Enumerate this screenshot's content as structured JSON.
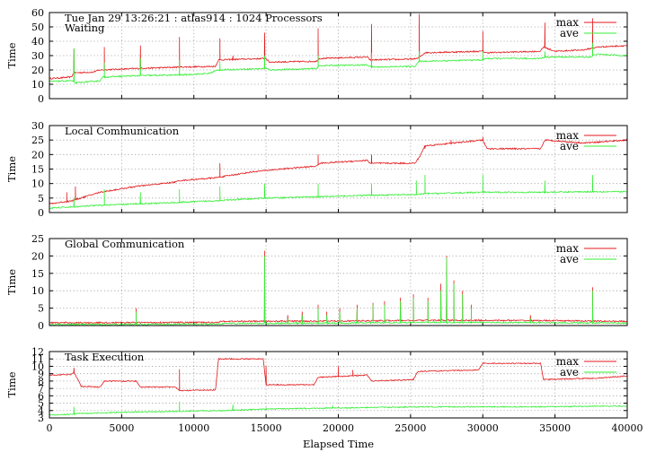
{
  "chart_data": [
    {
      "type": "line",
      "title": "Tue Jan 29 13:26:21 : atlas914 : 1024 Processors",
      "subtitle": "Waiting",
      "xlabel": "",
      "ylabel": "Time",
      "xlim": [
        0,
        40000
      ],
      "ylim": [
        0,
        60
      ],
      "yticks": [
        0,
        10,
        20,
        30,
        40,
        50,
        60
      ],
      "xticks": [],
      "grid": true,
      "legend": "top-right",
      "series": [
        {
          "name": "max",
          "color": "#e31a1c",
          "values": [
            [
              0,
              14
            ],
            [
              1500,
              15
            ],
            [
              1700,
              18
            ],
            [
              3000,
              18.5
            ],
            [
              3500,
              20
            ],
            [
              6000,
              21
            ],
            [
              9000,
              22
            ],
            [
              11500,
              22.5
            ],
            [
              11700,
              27
            ],
            [
              15000,
              28
            ],
            [
              15200,
              25.5
            ],
            [
              18500,
              26
            ],
            [
              18700,
              28
            ],
            [
              22000,
              29
            ],
            [
              22200,
              27
            ],
            [
              25000,
              27.5
            ],
            [
              25500,
              28
            ],
            [
              26000,
              32
            ],
            [
              30000,
              33
            ],
            [
              30200,
              32
            ],
            [
              34000,
              33
            ],
            [
              34200,
              36
            ],
            [
              35000,
              33
            ],
            [
              37000,
              34
            ],
            [
              38000,
              36
            ],
            [
              40000,
              37
            ]
          ],
          "spikes": [
            [
              1700,
              35
            ],
            [
              3800,
              36
            ],
            [
              6300,
              37
            ],
            [
              9000,
              43
            ],
            [
              11800,
              42
            ],
            [
              12700,
              30
            ],
            [
              14900,
              46
            ],
            [
              18600,
              49
            ],
            [
              22300,
              52
            ],
            [
              25600,
              59
            ],
            [
              30000,
              47
            ],
            [
              34300,
              53
            ],
            [
              37600,
              56
            ]
          ]
        },
        {
          "name": "ave",
          "color": "#33ee33",
          "values": [
            [
              0,
              12
            ],
            [
              1500,
              12.5
            ],
            [
              1800,
              11
            ],
            [
              3500,
              12.5
            ],
            [
              3700,
              15
            ],
            [
              6000,
              16
            ],
            [
              9000,
              16.5
            ],
            [
              11000,
              17.5
            ],
            [
              11700,
              20
            ],
            [
              15000,
              21
            ],
            [
              15300,
              20
            ],
            [
              18500,
              21
            ],
            [
              18700,
              23
            ],
            [
              22000,
              23.5
            ],
            [
              22300,
              22
            ],
            [
              25300,
              22.5
            ],
            [
              25600,
              26
            ],
            [
              30000,
              27
            ],
            [
              30200,
              28
            ],
            [
              34000,
              28
            ],
            [
              34300,
              29
            ],
            [
              37500,
              29
            ],
            [
              37800,
              31
            ],
            [
              40000,
              30
            ]
          ],
          "spikes": [
            [
              1700,
              35
            ],
            [
              3800,
              25
            ],
            [
              6300,
              28
            ],
            [
              9000,
              27
            ],
            [
              11800,
              26
            ],
            [
              14900,
              30
            ],
            [
              18600,
              30
            ],
            [
              22300,
              32
            ],
            [
              25600,
              33
            ],
            [
              30000,
              33
            ],
            [
              34300,
              33
            ],
            [
              37600,
              39
            ]
          ]
        }
      ]
    },
    {
      "type": "line",
      "title": "Local Communication",
      "xlabel": "",
      "ylabel": "Time",
      "xlim": [
        0,
        40000
      ],
      "ylim": [
        0,
        30
      ],
      "yticks": [
        0,
        5,
        10,
        15,
        20,
        25,
        30
      ],
      "xticks": [],
      "grid": true,
      "legend": "top-right",
      "series": [
        {
          "name": "max",
          "color": "#e31a1c",
          "values": [
            [
              0,
              3
            ],
            [
              1500,
              4
            ],
            [
              3500,
              7
            ],
            [
              6000,
              9
            ],
            [
              8700,
              10.5
            ],
            [
              9000,
              11
            ],
            [
              11500,
              12
            ],
            [
              14000,
              14
            ],
            [
              16000,
              15
            ],
            [
              18500,
              16
            ],
            [
              18700,
              17
            ],
            [
              22000,
              18
            ],
            [
              22200,
              17
            ],
            [
              25300,
              17
            ],
            [
              25600,
              19
            ],
            [
              26000,
              23
            ],
            [
              28000,
              24
            ],
            [
              30000,
              25
            ],
            [
              30300,
              22
            ],
            [
              34000,
              22
            ],
            [
              34300,
              25
            ],
            [
              37000,
              24
            ],
            [
              40000,
              25
            ]
          ],
          "spikes": [
            [
              1200,
              7
            ],
            [
              1800,
              9
            ],
            [
              11800,
              17
            ],
            [
              18600,
              20
            ],
            [
              22300,
              20
            ],
            [
              26000,
              22
            ],
            [
              27800,
              25
            ],
            [
              30000,
              26
            ]
          ]
        },
        {
          "name": "ave",
          "color": "#33ee33",
          "values": [
            [
              0,
              1.5
            ],
            [
              1800,
              2
            ],
            [
              3500,
              2.5
            ],
            [
              6000,
              3
            ],
            [
              9000,
              3.5
            ],
            [
              12000,
              4.2
            ],
            [
              15000,
              5
            ],
            [
              19000,
              5.5
            ],
            [
              22500,
              6
            ],
            [
              25500,
              6.2
            ],
            [
              26000,
              6.5
            ],
            [
              30000,
              7
            ],
            [
              34000,
              7
            ],
            [
              37500,
              7.2
            ],
            [
              40000,
              7.2
            ]
          ],
          "spikes": [
            [
              1700,
              5
            ],
            [
              3800,
              8
            ],
            [
              6300,
              7
            ],
            [
              9000,
              8
            ],
            [
              11800,
              9
            ],
            [
              14900,
              10
            ],
            [
              18600,
              10
            ],
            [
              22300,
              10
            ],
            [
              25400,
              11
            ],
            [
              26000,
              13
            ],
            [
              30000,
              13
            ],
            [
              34300,
              11
            ],
            [
              37600,
              13
            ]
          ]
        }
      ]
    },
    {
      "type": "line",
      "title": "Global Communication",
      "xlabel": "",
      "ylabel": "Time",
      "xlim": [
        0,
        40000
      ],
      "ylim": [
        0,
        25
      ],
      "yticks": [
        0,
        5,
        10,
        15,
        20,
        25
      ],
      "xticks": [],
      "grid": true,
      "legend": "top-right",
      "series": [
        {
          "name": "max",
          "color": "#e31a1c",
          "values": [
            [
              0,
              0.8
            ],
            [
              11500,
              0.9
            ],
            [
              12000,
              1.2
            ],
            [
              20000,
              1.3
            ],
            [
              26000,
              1.5
            ],
            [
              30000,
              1.5
            ],
            [
              35000,
              1.4
            ],
            [
              40000,
              1.2
            ]
          ],
          "spikes": [
            [
              6000,
              5
            ],
            [
              14900,
              21.5
            ],
            [
              16500,
              3
            ],
            [
              17500,
              4
            ],
            [
              18600,
              6
            ],
            [
              19200,
              4
            ],
            [
              20100,
              5
            ],
            [
              21300,
              6
            ],
            [
              22400,
              6.5
            ],
            [
              23200,
              7
            ],
            [
              24300,
              8
            ],
            [
              25200,
              9
            ],
            [
              26200,
              8
            ],
            [
              27100,
              12
            ],
            [
              27500,
              20
            ],
            [
              28000,
              13
            ],
            [
              28600,
              10
            ],
            [
              29200,
              6
            ],
            [
              33300,
              3
            ],
            [
              37600,
              11
            ]
          ]
        },
        {
          "name": "ave",
          "color": "#33ee33",
          "values": [
            [
              0,
              0.3
            ],
            [
              11500,
              0.4
            ],
            [
              12000,
              0.6
            ],
            [
              20000,
              0.7
            ],
            [
              26000,
              0.9
            ],
            [
              30000,
              0.9
            ],
            [
              35000,
              0.8
            ],
            [
              40000,
              0.7
            ]
          ],
          "spikes": [
            [
              6000,
              4
            ],
            [
              14900,
              20
            ],
            [
              16500,
              2
            ],
            [
              17500,
              3
            ],
            [
              18600,
              5
            ],
            [
              19200,
              3
            ],
            [
              20100,
              4
            ],
            [
              21300,
              5
            ],
            [
              22400,
              6
            ],
            [
              23200,
              6
            ],
            [
              24300,
              7
            ],
            [
              25200,
              8
            ],
            [
              26200,
              7
            ],
            [
              27100,
              10
            ],
            [
              27500,
              19.5
            ],
            [
              28000,
              12
            ],
            [
              28600,
              9
            ],
            [
              29200,
              5
            ],
            [
              33300,
              2
            ],
            [
              37600,
              10
            ]
          ]
        }
      ]
    },
    {
      "type": "line",
      "title": "Task Execution",
      "xlabel": "Elapsed Time",
      "ylabel": "Time",
      "xlim": [
        0,
        40000
      ],
      "ylim": [
        3,
        12
      ],
      "yticks": [
        3,
        4,
        5,
        6,
        7,
        8,
        9,
        10,
        11,
        12
      ],
      "xticks": [
        0,
        5000,
        10000,
        15000,
        20000,
        25000,
        30000,
        35000,
        40000
      ],
      "grid": true,
      "legend": "top-right",
      "series": [
        {
          "name": "max",
          "color": "#e31a1c",
          "values": [
            [
              0,
              8.8
            ],
            [
              1500,
              8.9
            ],
            [
              1700,
              9.2
            ],
            [
              2200,
              7.3
            ],
            [
              3500,
              7.2
            ],
            [
              3800,
              8
            ],
            [
              6000,
              8
            ],
            [
              6300,
              7.2
            ],
            [
              8700,
              7.2
            ],
            [
              9000,
              6.7
            ],
            [
              11500,
              6.8
            ],
            [
              11700,
              11
            ],
            [
              14800,
              11
            ],
            [
              15000,
              7.5
            ],
            [
              18300,
              7.5
            ],
            [
              18600,
              8.5
            ],
            [
              22000,
              8.8
            ],
            [
              22300,
              8
            ],
            [
              25200,
              8.2
            ],
            [
              25500,
              9.3
            ],
            [
              29700,
              9.5
            ],
            [
              30000,
              10.4
            ],
            [
              34000,
              10.4
            ],
            [
              34200,
              8.2
            ],
            [
              38000,
              8.4
            ],
            [
              40000,
              8.7
            ]
          ],
          "spikes": [
            [
              1700,
              9.8
            ],
            [
              9000,
              9.6
            ],
            [
              15000,
              10
            ],
            [
              20000,
              10
            ],
            [
              21000,
              9.5
            ]
          ]
        },
        {
          "name": "ave",
          "color": "#33ee33",
          "values": [
            [
              0,
              3.4
            ],
            [
              1500,
              3.5
            ],
            [
              2000,
              3.6
            ],
            [
              4000,
              3.7
            ],
            [
              6000,
              3.8
            ],
            [
              9000,
              3.9
            ],
            [
              12000,
              4
            ],
            [
              15000,
              4.2
            ],
            [
              18000,
              4.3
            ],
            [
              22000,
              4.4
            ],
            [
              26000,
              4.5
            ],
            [
              30000,
              4.5
            ],
            [
              34000,
              4.5
            ],
            [
              38000,
              4.6
            ],
            [
              40000,
              4.6
            ]
          ],
          "spikes": [
            [
              1700,
              4.5
            ],
            [
              9000,
              5.2
            ],
            [
              12700,
              4.8
            ],
            [
              15000,
              4.4
            ],
            [
              19600,
              4.7
            ]
          ]
        }
      ]
    }
  ]
}
